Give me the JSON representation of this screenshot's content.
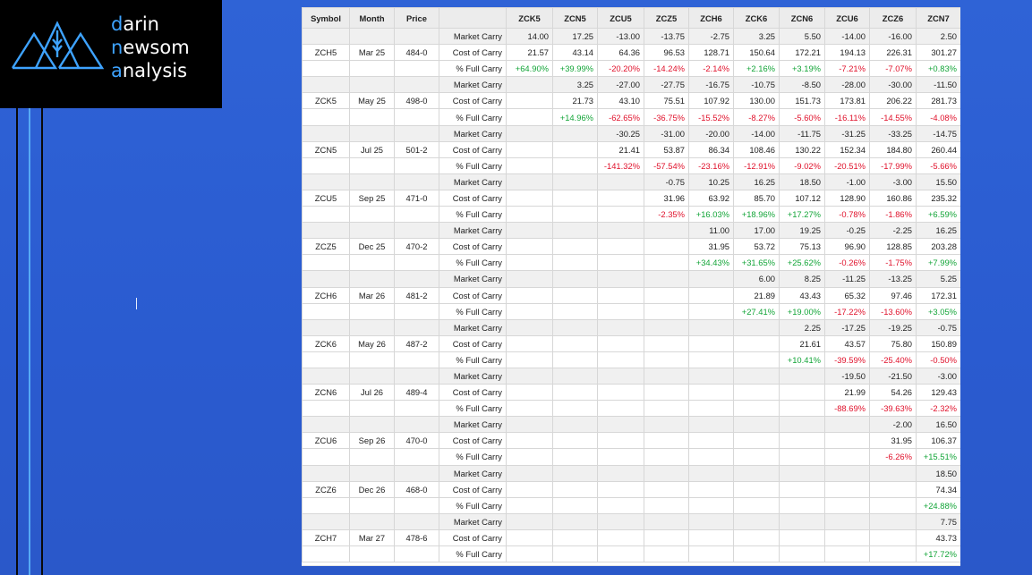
{
  "logo": {
    "line1": "darin",
    "line2": "newsom",
    "line3": "analysis"
  },
  "colors": {
    "accent": "#3ea3ff",
    "positive": "#13a538",
    "negative": "#e0112b",
    "background": "#2f63d6"
  },
  "table": {
    "columns": [
      "Symbol",
      "Month",
      "Price",
      "",
      "ZCK5",
      "ZCN5",
      "ZCU5",
      "ZCZ5",
      "ZCH6",
      "ZCK6",
      "ZCN6",
      "ZCU6",
      "ZCZ6",
      "ZCN7"
    ],
    "groups": [
      {
        "symbol": "ZCH5",
        "month": "Mar 25",
        "price": "484-0",
        "rows": [
          {
            "label": "Market Carry",
            "values": [
              "14.00",
              "17.25",
              "-13.00",
              "-13.75",
              "-2.75",
              "3.25",
              "5.50",
              "-14.00",
              "-16.00",
              "2.50"
            ]
          },
          {
            "label": "Cost of Carry",
            "values": [
              "21.57",
              "43.14",
              "64.36",
              "96.53",
              "128.71",
              "150.64",
              "172.21",
              "194.13",
              "226.31",
              "301.27"
            ]
          },
          {
            "label": "% Full Carry",
            "values": [
              "+64.90%",
              "+39.99%",
              "-20.20%",
              "-14.24%",
              "-2.14%",
              "+2.16%",
              "+3.19%",
              "-7.21%",
              "-7.07%",
              "+0.83%"
            ]
          }
        ]
      },
      {
        "symbol": "ZCK5",
        "month": "May 25",
        "price": "498-0",
        "rows": [
          {
            "label": "Market Carry",
            "values": [
              "",
              "3.25",
              "-27.00",
              "-27.75",
              "-16.75",
              "-10.75",
              "-8.50",
              "-28.00",
              "-30.00",
              "-11.50"
            ]
          },
          {
            "label": "Cost of Carry",
            "values": [
              "",
              "21.73",
              "43.10",
              "75.51",
              "107.92",
              "130.00",
              "151.73",
              "173.81",
              "206.22",
              "281.73"
            ]
          },
          {
            "label": "% Full Carry",
            "values": [
              "",
              "+14.96%",
              "-62.65%",
              "-36.75%",
              "-15.52%",
              "-8.27%",
              "-5.60%",
              "-16.11%",
              "-14.55%",
              "-4.08%"
            ]
          }
        ]
      },
      {
        "symbol": "ZCN5",
        "month": "Jul 25",
        "price": "501-2",
        "rows": [
          {
            "label": "Market Carry",
            "values": [
              "",
              "",
              "-30.25",
              "-31.00",
              "-20.00",
              "-14.00",
              "-11.75",
              "-31.25",
              "-33.25",
              "-14.75"
            ]
          },
          {
            "label": "Cost of Carry",
            "values": [
              "",
              "",
              "21.41",
              "53.87",
              "86.34",
              "108.46",
              "130.22",
              "152.34",
              "184.80",
              "260.44"
            ]
          },
          {
            "label": "% Full Carry",
            "values": [
              "",
              "",
              "-141.32%",
              "-57.54%",
              "-23.16%",
              "-12.91%",
              "-9.02%",
              "-20.51%",
              "-17.99%",
              "-5.66%"
            ]
          }
        ]
      },
      {
        "symbol": "ZCU5",
        "month": "Sep 25",
        "price": "471-0",
        "rows": [
          {
            "label": "Market Carry",
            "values": [
              "",
              "",
              "",
              "-0.75",
              "10.25",
              "16.25",
              "18.50",
              "-1.00",
              "-3.00",
              "15.50"
            ]
          },
          {
            "label": "Cost of Carry",
            "values": [
              "",
              "",
              "",
              "31.96",
              "63.92",
              "85.70",
              "107.12",
              "128.90",
              "160.86",
              "235.32"
            ]
          },
          {
            "label": "% Full Carry",
            "values": [
              "",
              "",
              "",
              "-2.35%",
              "+16.03%",
              "+18.96%",
              "+17.27%",
              "-0.78%",
              "-1.86%",
              "+6.59%"
            ]
          }
        ]
      },
      {
        "symbol": "ZCZ5",
        "month": "Dec 25",
        "price": "470-2",
        "rows": [
          {
            "label": "Market Carry",
            "values": [
              "",
              "",
              "",
              "",
              "11.00",
              "17.00",
              "19.25",
              "-0.25",
              "-2.25",
              "16.25"
            ]
          },
          {
            "label": "Cost of Carry",
            "values": [
              "",
              "",
              "",
              "",
              "31.95",
              "53.72",
              "75.13",
              "96.90",
              "128.85",
              "203.28"
            ]
          },
          {
            "label": "% Full Carry",
            "values": [
              "",
              "",
              "",
              "",
              "+34.43%",
              "+31.65%",
              "+25.62%",
              "-0.26%",
              "-1.75%",
              "+7.99%"
            ]
          }
        ]
      },
      {
        "symbol": "ZCH6",
        "month": "Mar 26",
        "price": "481-2",
        "rows": [
          {
            "label": "Market Carry",
            "values": [
              "",
              "",
              "",
              "",
              "",
              "6.00",
              "8.25",
              "-11.25",
              "-13.25",
              "5.25"
            ]
          },
          {
            "label": "Cost of Carry",
            "values": [
              "",
              "",
              "",
              "",
              "",
              "21.89",
              "43.43",
              "65.32",
              "97.46",
              "172.31"
            ]
          },
          {
            "label": "% Full Carry",
            "values": [
              "",
              "",
              "",
              "",
              "",
              "+27.41%",
              "+19.00%",
              "-17.22%",
              "-13.60%",
              "+3.05%"
            ]
          }
        ]
      },
      {
        "symbol": "ZCK6",
        "month": "May 26",
        "price": "487-2",
        "rows": [
          {
            "label": "Market Carry",
            "values": [
              "",
              "",
              "",
              "",
              "",
              "",
              "2.25",
              "-17.25",
              "-19.25",
              "-0.75"
            ]
          },
          {
            "label": "Cost of Carry",
            "values": [
              "",
              "",
              "",
              "",
              "",
              "",
              "21.61",
              "43.57",
              "75.80",
              "150.89"
            ]
          },
          {
            "label": "% Full Carry",
            "values": [
              "",
              "",
              "",
              "",
              "",
              "",
              "+10.41%",
              "-39.59%",
              "-25.40%",
              "-0.50%"
            ]
          }
        ]
      },
      {
        "symbol": "ZCN6",
        "month": "Jul 26",
        "price": "489-4",
        "rows": [
          {
            "label": "Market Carry",
            "values": [
              "",
              "",
              "",
              "",
              "",
              "",
              "",
              "-19.50",
              "-21.50",
              "-3.00"
            ]
          },
          {
            "label": "Cost of Carry",
            "values": [
              "",
              "",
              "",
              "",
              "",
              "",
              "",
              "21.99",
              "54.26",
              "129.43"
            ]
          },
          {
            "label": "% Full Carry",
            "values": [
              "",
              "",
              "",
              "",
              "",
              "",
              "",
              "-88.69%",
              "-39.63%",
              "-2.32%"
            ]
          }
        ]
      },
      {
        "symbol": "ZCU6",
        "month": "Sep 26",
        "price": "470-0",
        "rows": [
          {
            "label": "Market Carry",
            "values": [
              "",
              "",
              "",
              "",
              "",
              "",
              "",
              "",
              "-2.00",
              "16.50"
            ]
          },
          {
            "label": "Cost of Carry",
            "values": [
              "",
              "",
              "",
              "",
              "",
              "",
              "",
              "",
              "31.95",
              "106.37"
            ]
          },
          {
            "label": "% Full Carry",
            "values": [
              "",
              "",
              "",
              "",
              "",
              "",
              "",
              "",
              "-6.26%",
              "+15.51%"
            ]
          }
        ]
      },
      {
        "symbol": "ZCZ6",
        "month": "Dec 26",
        "price": "468-0",
        "rows": [
          {
            "label": "Market Carry",
            "values": [
              "",
              "",
              "",
              "",
              "",
              "",
              "",
              "",
              "",
              "18.50"
            ]
          },
          {
            "label": "Cost of Carry",
            "values": [
              "",
              "",
              "",
              "",
              "",
              "",
              "",
              "",
              "",
              "74.34"
            ]
          },
          {
            "label": "% Full Carry",
            "values": [
              "",
              "",
              "",
              "",
              "",
              "",
              "",
              "",
              "",
              "+24.88%"
            ]
          }
        ]
      },
      {
        "symbol": "ZCH7",
        "month": "Mar 27",
        "price": "478-6",
        "rows": [
          {
            "label": "Market Carry",
            "values": [
              "",
              "",
              "",
              "",
              "",
              "",
              "",
              "",
              "",
              "7.75"
            ]
          },
          {
            "label": "Cost of Carry",
            "values": [
              "",
              "",
              "",
              "",
              "",
              "",
              "",
              "",
              "",
              "43.73"
            ]
          },
          {
            "label": "% Full Carry",
            "values": [
              "",
              "",
              "",
              "",
              "",
              "",
              "",
              "",
              "",
              "+17.72%"
            ]
          }
        ]
      }
    ]
  }
}
